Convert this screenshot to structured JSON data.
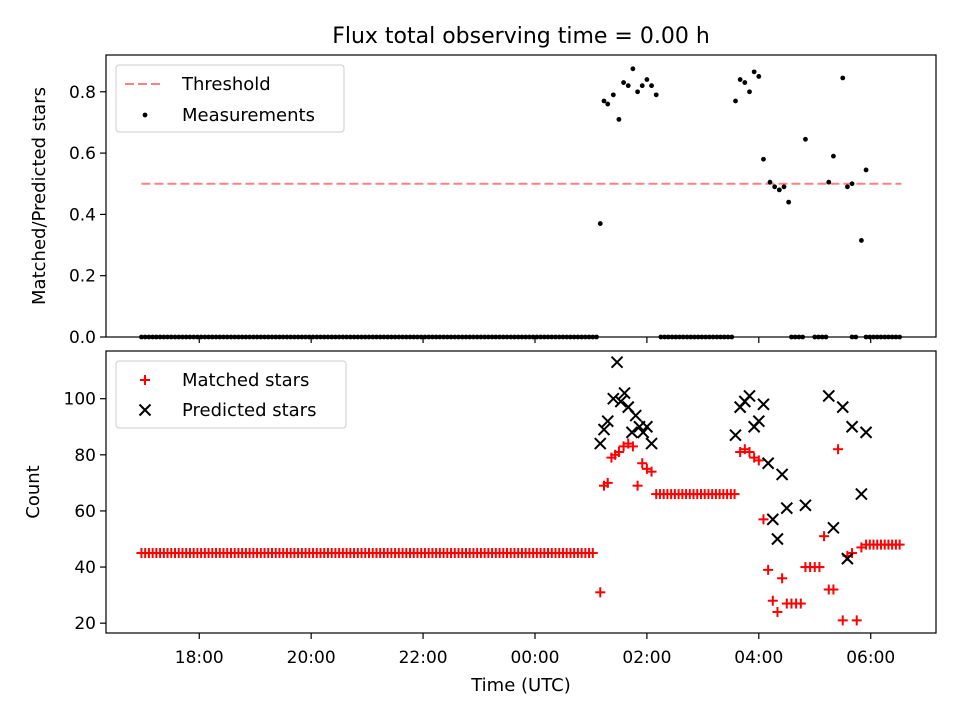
{
  "title": "Flux total observing time = 0.00 h",
  "xlabel": "Time (UTC)",
  "x_tick_labels": [
    "18:00",
    "20:00",
    "22:00",
    "00:00",
    "02:00",
    "04:00",
    "06:00"
  ],
  "colors": {
    "threshold": "#ff8080",
    "measurements": "#000000",
    "matched": "#ff0000",
    "predicted": "#000000"
  },
  "chart_data": [
    {
      "type": "scatter",
      "ylabel": "Matched/Predicted stars",
      "ylim": [
        0,
        0.92
      ],
      "y_ticks": [
        "0.0",
        "0.2",
        "0.4",
        "0.6",
        "0.8"
      ],
      "xlim": [
        "16:20",
        "07:10"
      ],
      "legend_position": "top-left",
      "legend": [
        "Threshold",
        "Measurements"
      ],
      "threshold": {
        "name": "Threshold",
        "y": 0.5,
        "x_range": [
          "16:58",
          "06:33"
        ]
      },
      "measurements": {
        "name": "Measurements",
        "zero_run_times": [
          "16:58-01:08",
          "02:15-03:32",
          "04:35-04:50",
          "05:00-05:15",
          "05:40-05:45",
          "05:55-06:33"
        ],
        "points": [
          [
            "01:10",
            0.37
          ],
          [
            "01:14",
            0.77
          ],
          [
            "01:18",
            0.76
          ],
          [
            "01:24",
            0.79
          ],
          [
            "01:30",
            0.71
          ],
          [
            "01:35",
            0.83
          ],
          [
            "01:40",
            0.82
          ],
          [
            "01:45",
            0.875
          ],
          [
            "01:50",
            0.8
          ],
          [
            "01:55",
            0.82
          ],
          [
            "02:00",
            0.84
          ],
          [
            "02:05",
            0.82
          ],
          [
            "02:10",
            0.79
          ],
          [
            "03:35",
            0.77
          ],
          [
            "03:40",
            0.84
          ],
          [
            "03:45",
            0.83
          ],
          [
            "03:50",
            0.8
          ],
          [
            "03:55",
            0.865
          ],
          [
            "04:00",
            0.85
          ],
          [
            "04:05",
            0.58
          ],
          [
            "04:12",
            0.505
          ],
          [
            "04:17",
            0.49
          ],
          [
            "04:22",
            0.48
          ],
          [
            "04:27",
            0.49
          ],
          [
            "04:32",
            0.44
          ],
          [
            "04:50",
            0.645
          ],
          [
            "05:15",
            0.505
          ],
          [
            "05:20",
            0.59
          ],
          [
            "05:30",
            0.845
          ],
          [
            "05:35",
            0.49
          ],
          [
            "05:40",
            0.5
          ],
          [
            "05:50",
            0.315
          ],
          [
            "05:55",
            0.545
          ]
        ]
      }
    },
    {
      "type": "scatter",
      "ylabel": "Count",
      "ylim": [
        16.5,
        117
      ],
      "y_ticks": [
        "20",
        "40",
        "60",
        "80",
        "100"
      ],
      "xlim": [
        "16:20",
        "07:10"
      ],
      "legend_position": "top-left",
      "legend": [
        "Matched stars",
        "Predicted stars"
      ],
      "series": [
        {
          "name": "Matched stars",
          "marker": "+",
          "runs": [
            {
              "from": "16:58",
              "to": "01:05",
              "y": 45
            },
            {
              "from": "02:10",
              "to": "03:35",
              "y": 66
            },
            {
              "from": "05:55",
              "to": "06:33",
              "y": 48
            }
          ],
          "points": [
            [
              "01:10",
              31
            ],
            [
              "01:14",
              69
            ],
            [
              "01:18",
              70
            ],
            [
              "01:22",
              79
            ],
            [
              "01:26",
              80
            ],
            [
              "01:30",
              81
            ],
            [
              "01:35",
              83
            ],
            [
              "01:40",
              84
            ],
            [
              "01:45",
              83
            ],
            [
              "01:50",
              69
            ],
            [
              "01:55",
              77
            ],
            [
              "02:00",
              75
            ],
            [
              "02:05",
              74
            ],
            [
              "03:40",
              81
            ],
            [
              "03:45",
              82
            ],
            [
              "03:50",
              81
            ],
            [
              "03:55",
              79
            ],
            [
              "04:00",
              78
            ],
            [
              "04:05",
              57
            ],
            [
              "04:10",
              39
            ],
            [
              "04:15",
              28
            ],
            [
              "04:20",
              24
            ],
            [
              "04:25",
              36
            ],
            [
              "04:30",
              27
            ],
            [
              "04:35",
              27
            ],
            [
              "04:40",
              27
            ],
            [
              "04:45",
              27
            ],
            [
              "04:50",
              40
            ],
            [
              "04:55",
              40
            ],
            [
              "05:00",
              40
            ],
            [
              "05:05",
              40
            ],
            [
              "05:10",
              51
            ],
            [
              "05:15",
              32
            ],
            [
              "05:20",
              32
            ],
            [
              "05:25",
              82
            ],
            [
              "05:30",
              21
            ],
            [
              "05:35",
              44
            ],
            [
              "05:40",
              45
            ],
            [
              "05:45",
              21
            ],
            [
              "05:50",
              47
            ]
          ]
        },
        {
          "name": "Predicted stars",
          "marker": "x",
          "points": [
            [
              "01:10",
              84
            ],
            [
              "01:14",
              89
            ],
            [
              "01:18",
              92
            ],
            [
              "01:24",
              100
            ],
            [
              "01:28",
              113
            ],
            [
              "01:32",
              99
            ],
            [
              "01:36",
              102
            ],
            [
              "01:40",
              97
            ],
            [
              "01:44",
              88
            ],
            [
              "01:48",
              94
            ],
            [
              "01:52",
              90
            ],
            [
              "01:56",
              88
            ],
            [
              "02:00",
              90
            ],
            [
              "02:05",
              84
            ],
            [
              "03:35",
              87
            ],
            [
              "03:40",
              97
            ],
            [
              "03:45",
              99
            ],
            [
              "03:50",
              101
            ],
            [
              "03:55",
              90
            ],
            [
              "04:00",
              92
            ],
            [
              "04:05",
              98
            ],
            [
              "04:10",
              77
            ],
            [
              "04:15",
              57
            ],
            [
              "04:20",
              50
            ],
            [
              "04:25",
              73
            ],
            [
              "04:30",
              61
            ],
            [
              "04:50",
              62
            ],
            [
              "05:15",
              101
            ],
            [
              "05:20",
              54
            ],
            [
              "05:30",
              97
            ],
            [
              "05:35",
              43
            ],
            [
              "05:40",
              90
            ],
            [
              "05:50",
              66
            ],
            [
              "05:55",
              88
            ]
          ]
        }
      ]
    }
  ]
}
